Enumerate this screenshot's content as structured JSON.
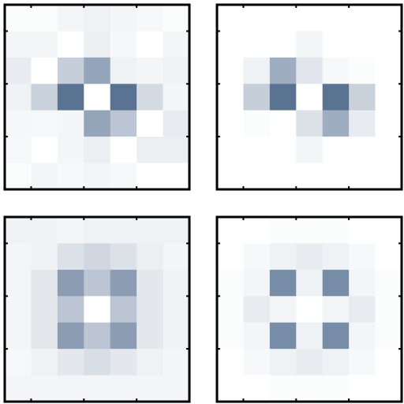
{
  "chart_data": [
    {
      "type": "heatmap",
      "colormap": {
        "low": "#ffffff",
        "high": "#3d5a80"
      },
      "grid": false,
      "title": "",
      "xlabel": "",
      "ylabel": "",
      "values": [
        [
          0.02,
          0.02,
          0.06,
          0.08,
          0.06,
          0.04,
          0.02
        ],
        [
          0.06,
          0.06,
          0.0,
          0.1,
          0.05,
          0.0,
          0.06
        ],
        [
          0.12,
          0.0,
          0.3,
          0.55,
          0.08,
          0.06,
          0.08
        ],
        [
          0.08,
          0.28,
          0.85,
          0.0,
          0.85,
          0.22,
          0.06
        ],
        [
          0.05,
          0.04,
          0.06,
          0.55,
          0.35,
          0.0,
          0.12
        ],
        [
          0.04,
          0.0,
          0.06,
          0.1,
          0.0,
          0.1,
          0.1
        ],
        [
          0.02,
          0.06,
          0.04,
          0.06,
          0.04,
          0.0,
          0.0
        ]
      ]
    },
    {
      "type": "heatmap",
      "colormap": {
        "low": "#ffffff",
        "high": "#3d5a80"
      },
      "grid": false,
      "title": "",
      "xlabel": "",
      "ylabel": "",
      "values": [
        [
          0.0,
          0.0,
          0.0,
          0.0,
          0.0,
          0.0,
          0.0
        ],
        [
          0.0,
          0.0,
          0.0,
          0.06,
          0.0,
          0.0,
          0.0
        ],
        [
          0.0,
          0.08,
          0.5,
          0.15,
          0.04,
          0.02,
          0.0
        ],
        [
          0.0,
          0.3,
          0.85,
          0.0,
          0.85,
          0.28,
          0.0
        ],
        [
          0.0,
          0.02,
          0.0,
          0.18,
          0.5,
          0.12,
          0.0
        ],
        [
          0.0,
          0.0,
          0.0,
          0.06,
          0.0,
          0.0,
          0.0
        ],
        [
          0.0,
          0.0,
          0.0,
          0.0,
          0.0,
          0.0,
          0.0
        ]
      ]
    },
    {
      "type": "heatmap",
      "colormap": {
        "low": "#ffffff",
        "high": "#3d5a80"
      },
      "grid": false,
      "title": "",
      "xlabel": "",
      "ylabel": "",
      "values": [
        [
          0.08,
          0.08,
          0.06,
          0.08,
          0.08,
          0.08,
          0.08
        ],
        [
          0.06,
          0.08,
          0.18,
          0.24,
          0.18,
          0.1,
          0.06
        ],
        [
          0.06,
          0.14,
          0.6,
          0.35,
          0.6,
          0.14,
          0.08
        ],
        [
          0.06,
          0.14,
          0.35,
          0.0,
          0.35,
          0.14,
          0.08
        ],
        [
          0.06,
          0.14,
          0.6,
          0.35,
          0.6,
          0.14,
          0.08
        ],
        [
          0.04,
          0.08,
          0.14,
          0.2,
          0.14,
          0.08,
          0.06
        ],
        [
          0.06,
          0.06,
          0.06,
          0.06,
          0.06,
          0.06,
          0.06
        ]
      ]
    },
    {
      "type": "heatmap",
      "colormap": {
        "low": "#ffffff",
        "high": "#3d5a80"
      },
      "grid": false,
      "title": "",
      "xlabel": "",
      "ylabel": "",
      "values": [
        [
          0.0,
          0.0,
          0.02,
          0.02,
          0.02,
          0.0,
          0.0
        ],
        [
          0.0,
          0.04,
          0.08,
          0.12,
          0.08,
          0.04,
          0.0
        ],
        [
          0.02,
          0.06,
          0.7,
          0.08,
          0.7,
          0.06,
          0.02
        ],
        [
          0.02,
          0.12,
          0.06,
          0.0,
          0.06,
          0.12,
          0.02
        ],
        [
          0.02,
          0.06,
          0.7,
          0.08,
          0.7,
          0.06,
          0.02
        ],
        [
          0.0,
          0.04,
          0.08,
          0.12,
          0.08,
          0.04,
          0.0
        ],
        [
          0.0,
          0.0,
          0.02,
          0.02,
          0.02,
          0.0,
          0.0
        ]
      ]
    }
  ]
}
